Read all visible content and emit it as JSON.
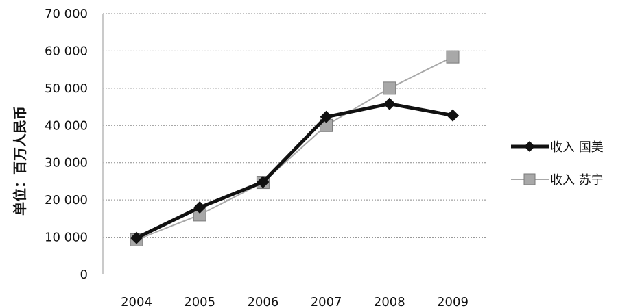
{
  "chart_data": {
    "type": "line",
    "ylabel": "单位：百万人民币",
    "categories": [
      "2004",
      "2005",
      "2006",
      "2007",
      "2008",
      "2009"
    ],
    "ylim": [
      0,
      70000
    ],
    "yticks": [
      {
        "value": 0,
        "label": "0"
      },
      {
        "value": 10000,
        "label": "10 000"
      },
      {
        "value": 20000,
        "label": "20 000"
      },
      {
        "value": 30000,
        "label": "30 000"
      },
      {
        "value": 40000,
        "label": "40 000"
      },
      {
        "value": 50000,
        "label": "50 000"
      },
      {
        "value": 60000,
        "label": "60 000"
      },
      {
        "value": 70000,
        "label": "70 000"
      }
    ],
    "grid": true,
    "legend_position": "right",
    "series": [
      {
        "name": "收入 国美",
        "color": "#111111",
        "marker": "diamond",
        "values": [
          9800,
          18000,
          24800,
          42300,
          45800,
          42700
        ]
      },
      {
        "name": "收入 苏宁",
        "color": "#a8a8a8",
        "marker": "square",
        "values": [
          9300,
          16000,
          24700,
          40000,
          50000,
          58400
        ]
      }
    ]
  }
}
